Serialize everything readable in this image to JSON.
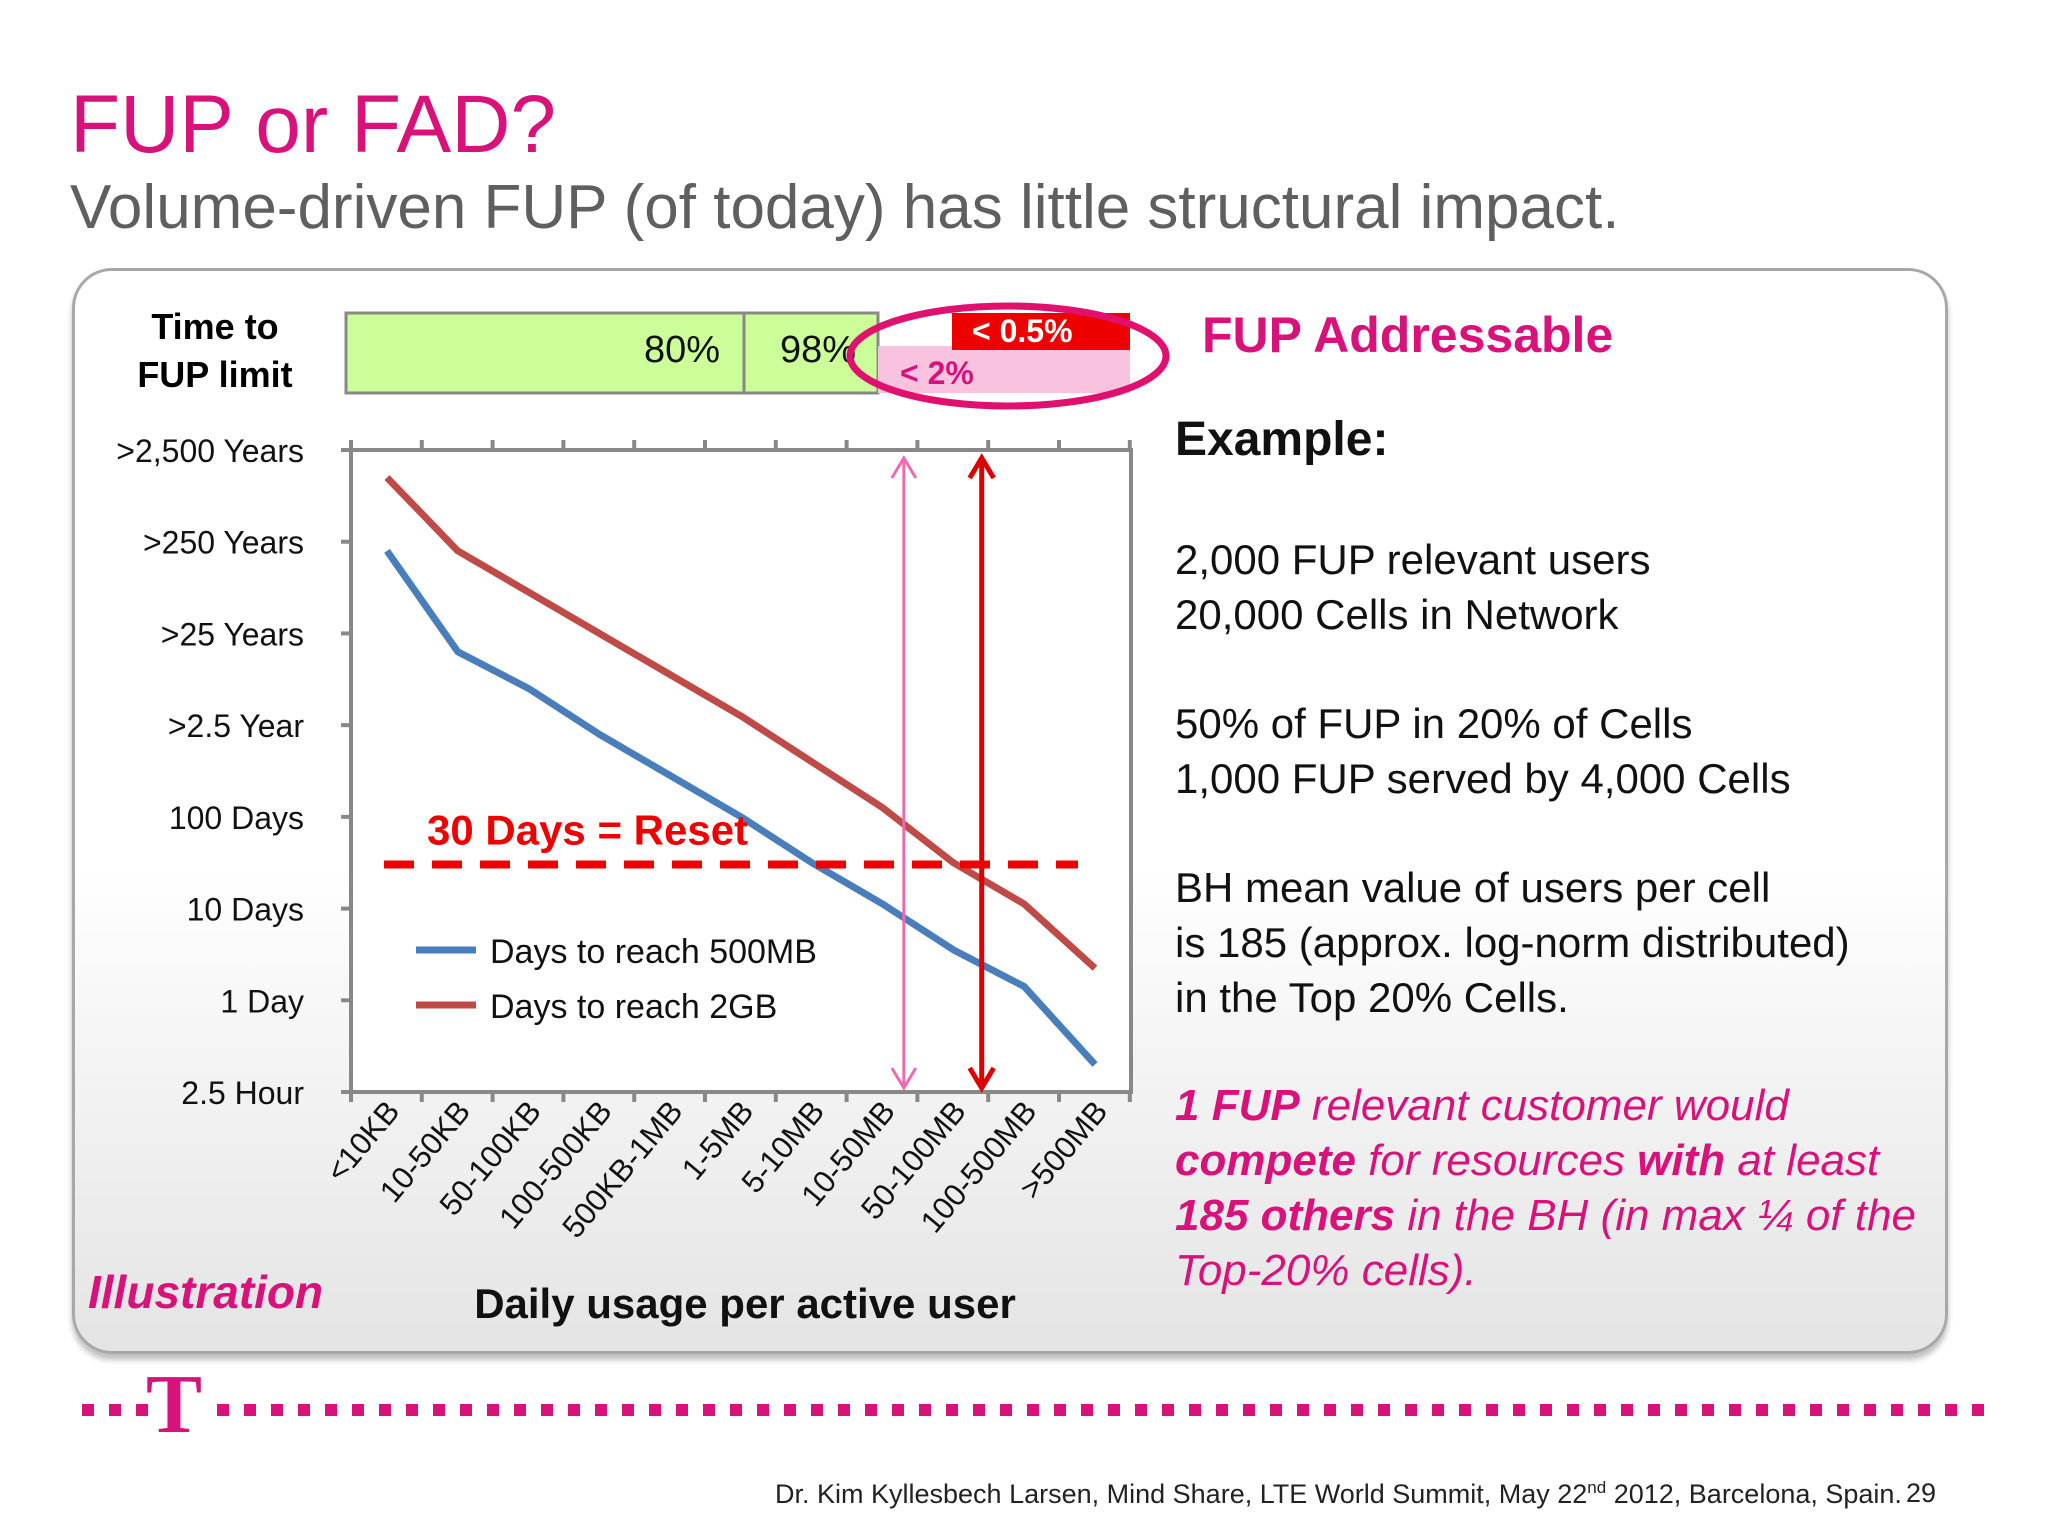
{
  "slide": {
    "title": "FUP or FAD?",
    "subtitle": "Volume-driven FUP (of today) has little structural impact.",
    "footer_pre": "Dr. Kim Kyllesbech Larsen, Mind Share, LTE World Summit, May 22",
    "footer_sup": "nd",
    "footer_post": " 2012, Barcelona, Spain.",
    "page_number": "29",
    "brand_color": "#d8127a",
    "logo_letter": "T"
  },
  "bar": {
    "label_line1": "Time to",
    "label_line2": "FUP limit",
    "segments": [
      "80%",
      "98%"
    ],
    "lt2_label": "< 2%",
    "lt05_label": "< 0.5%",
    "addressable_label": "FUP Addressable",
    "colors": {
      "green": "#ccff99",
      "pink": "#f9c3e0",
      "red": "#ee0000",
      "circle": "#e0106e"
    }
  },
  "example": {
    "heading": "Example:",
    "line1": "2,000 FUP relevant users",
    "line2": "20,000 Cells in Network",
    "line3": "50% of FUP in 20% of Cells",
    "line4": "1,000 FUP served by 4,000 Cells",
    "line5": "BH mean value of users per cell",
    "line6": "is 185 (approx. log-norm distributed)",
    "line7": "in the Top 20% Cells."
  },
  "conclusion": {
    "p1": "1 FUP",
    "p2": " relevant customer would ",
    "p3": "compete",
    "p4": " for resources ",
    "p5": "with",
    "p6": " at least ",
    "p7": "185 others",
    "p8": " in the BH (in max ¼ of the Top-20% cells)."
  },
  "chart_data": {
    "type": "line",
    "xlabel": "Daily usage per active user",
    "annotation": "30 Days = Reset",
    "illustration_label": "Illustration",
    "categories": [
      "<10KB",
      "10-50KB",
      "50-100KB",
      "100-500KB",
      "500KB-1MB",
      "1-5MB",
      "5-10MB",
      "10-50MB",
      "50-100MB",
      "100-500MB",
      ">500MB"
    ],
    "y_tick_labels": [
      "2.5 Hour",
      "1 Day",
      "10 Days",
      "100 Days",
      ">2.5 Year",
      ">25 Years",
      ">250 Years",
      ">2,500 Years"
    ],
    "y_log10_days": [
      -1,
      0,
      1,
      2,
      3,
      4,
      5,
      6
    ],
    "ylim_log10_days": [
      -1,
      6
    ],
    "reset_log10_days": 1.48,
    "arrow_2pct_x": 7.3,
    "arrow_05pct_x": 8.4,
    "series": [
      {
        "name": "Days to reach 500MB",
        "color": "#4a7ebb",
        "values": [
          4.9,
          3.8,
          3.4,
          2.9,
          2.45,
          2.0,
          1.5,
          1.05,
          0.55,
          0.15,
          -0.7
        ]
      },
      {
        "name": "Days to reach 2GB",
        "color": "#be4b48",
        "values": [
          5.7,
          4.9,
          4.45,
          4.0,
          3.55,
          3.1,
          2.6,
          2.1,
          1.5,
          1.05,
          0.35
        ]
      }
    ],
    "arrow_colors": {
      "lt2": "#ee6ab0",
      "lt05": "#dd0000"
    },
    "reset_color": "#ee0000"
  }
}
